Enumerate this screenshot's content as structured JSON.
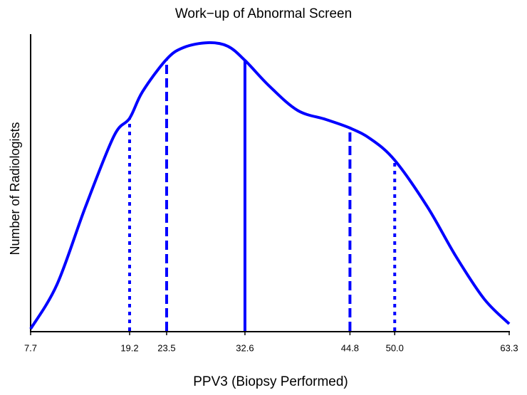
{
  "chart_data": {
    "type": "line",
    "title": "Work−up of Abnormal Screen",
    "x_label": "PPV3 (Biopsy Performed)",
    "y_label": "Number of Radiologists",
    "color": "#0000ff",
    "x": [
      7.7,
      10.76,
      14.07,
      17.38,
      19.2,
      20.7,
      23.5,
      25.5,
      28.3,
      30.6,
      32.6,
      35.4,
      38.7,
      42,
      44.8,
      47.2,
      50,
      53.8,
      57.1,
      60.4,
      63.3
    ],
    "values": [
      0.7,
      15.7,
      42,
      66,
      72,
      81,
      92,
      96,
      97.6,
      96.4,
      91.6,
      83,
      74.7,
      71.6,
      68.7,
      65,
      57.8,
      42,
      25.3,
      10.8,
      2.4
    ],
    "xlim": [
      7.7,
      63.3
    ],
    "ylim": [
      0,
      100
    ],
    "xticks": [
      7.7,
      19.2,
      23.5,
      32.6,
      44.8,
      {
        "value": 50,
        "label": "50.0"
      },
      63.3
    ],
    "markers": {
      "x": [
        19.2,
        23.5,
        32.6,
        44.8,
        50
      ],
      "heights": [
        72,
        92,
        91.6,
        68.7,
        57.8
      ],
      "styles": [
        "dotted",
        "dashed",
        "solid",
        "dashed",
        "dotted"
      ]
    }
  }
}
